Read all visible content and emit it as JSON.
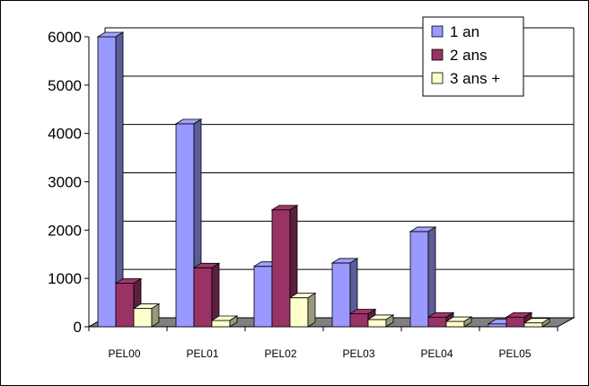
{
  "chart_data": {
    "type": "bar",
    "title": "",
    "xlabel": "",
    "ylabel": "",
    "categories": [
      "PEL00",
      "PEL01",
      "PEL02",
      "PEL03",
      "PEL04",
      "PEL05"
    ],
    "series": [
      {
        "name": "1 an",
        "values": [
          6000,
          4200,
          1250,
          1320,
          1970,
          60
        ]
      },
      {
        "name": "2 ans",
        "values": [
          900,
          1220,
          2420,
          270,
          200,
          200
        ]
      },
      {
        "name": "3 ans +",
        "values": [
          380,
          130,
          600,
          150,
          110,
          80
        ]
      }
    ],
    "ylim": [
      0,
      6000
    ],
    "yticks": [
      0,
      1000,
      2000,
      3000,
      4000,
      5000,
      6000
    ],
    "grid": true,
    "legend_position": "top-right",
    "style": "3d-clustered-column"
  },
  "colors": {
    "series": [
      "#9999ff",
      "#993366",
      "#ffffcc"
    ],
    "floor": "#808080",
    "gridline": "#000000"
  }
}
